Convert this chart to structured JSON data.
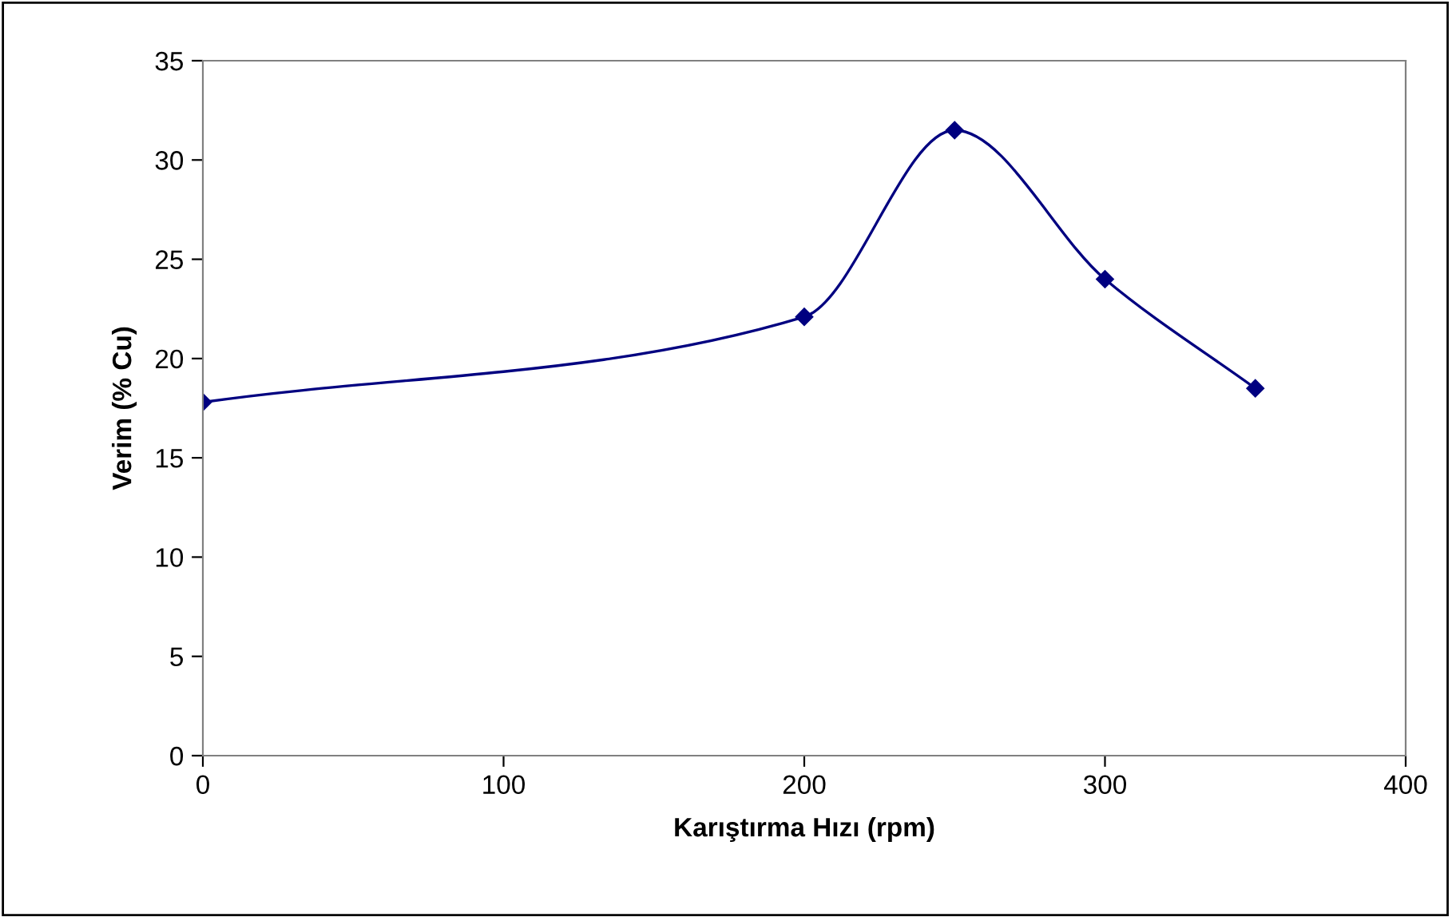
{
  "chart_data": {
    "type": "line",
    "xlabel": "Karıştırma Hızı (rpm)",
    "ylabel": "Verim (% Cu)",
    "x": [
      0,
      200,
      250,
      300,
      350
    ],
    "series": [
      {
        "color": "#000080",
        "values": [
          17.8,
          22.1,
          31.5,
          24.0,
          18.5
        ]
      }
    ],
    "xlim": [
      0,
      400
    ],
    "xticks": [
      0,
      100,
      200,
      300,
      400
    ],
    "ylim": [
      0,
      35
    ],
    "yticks": [
      0,
      5,
      10,
      15,
      20,
      25,
      30,
      35
    ],
    "grid": false,
    "legend": false,
    "marker": "diamond",
    "line_style": "solid"
  }
}
